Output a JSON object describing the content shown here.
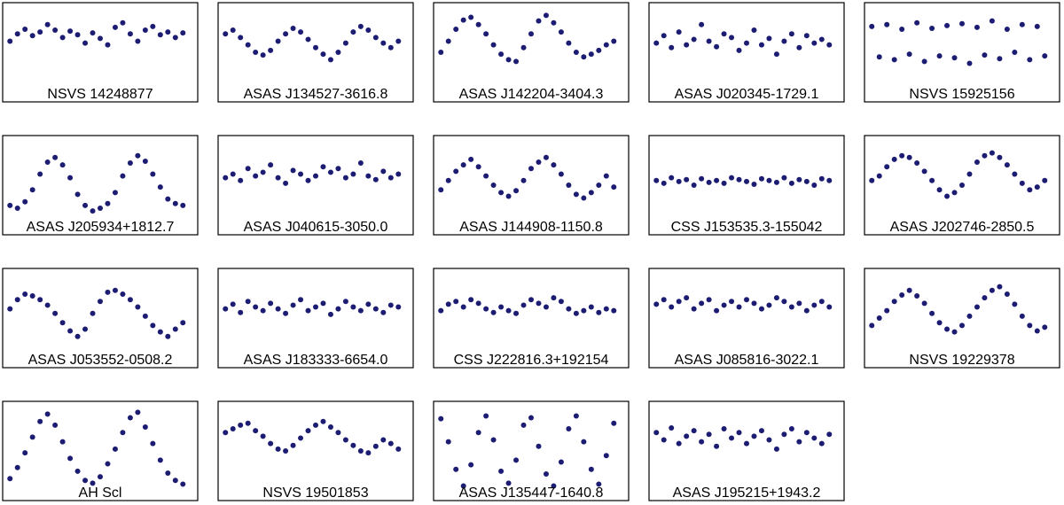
{
  "chart_data": [
    {
      "type": "scatter",
      "title": "NSVS 14248877",
      "color": "#1c1c73",
      "xlim": [
        0,
        1
      ],
      "ylim": [
        0,
        1
      ],
      "x": [
        0.02,
        0.06,
        0.1,
        0.14,
        0.18,
        0.22,
        0.26,
        0.3,
        0.34,
        0.38,
        0.42,
        0.46,
        0.5,
        0.54,
        0.58,
        0.62,
        0.66,
        0.7,
        0.74,
        0.78,
        0.82,
        0.86,
        0.9,
        0.94
      ],
      "y": [
        0.62,
        0.7,
        0.75,
        0.68,
        0.72,
        0.8,
        0.74,
        0.66,
        0.73,
        0.69,
        0.6,
        0.71,
        0.65,
        0.58,
        0.77,
        0.82,
        0.7,
        0.62,
        0.74,
        0.78,
        0.69,
        0.72,
        0.66,
        0.71
      ]
    },
    {
      "type": "scatter",
      "title": "ASAS J134527-3616.8",
      "color": "#1c1c73",
      "xlim": [
        0,
        1
      ],
      "ylim": [
        0,
        1
      ],
      "x": [
        0.02,
        0.06,
        0.1,
        0.14,
        0.18,
        0.22,
        0.26,
        0.3,
        0.34,
        0.38,
        0.42,
        0.46,
        0.5,
        0.54,
        0.58,
        0.62,
        0.66,
        0.7,
        0.74,
        0.78,
        0.82,
        0.86,
        0.9,
        0.94
      ],
      "y": [
        0.7,
        0.74,
        0.66,
        0.58,
        0.5,
        0.47,
        0.52,
        0.62,
        0.7,
        0.76,
        0.72,
        0.64,
        0.55,
        0.48,
        0.42,
        0.5,
        0.6,
        0.72,
        0.78,
        0.74,
        0.66,
        0.6,
        0.55,
        0.62
      ]
    },
    {
      "type": "scatter",
      "title": "ASAS J142204-3404.3",
      "color": "#1c1c73",
      "xlim": [
        0,
        1
      ],
      "ylim": [
        0,
        1
      ],
      "x": [
        0.02,
        0.06,
        0.1,
        0.14,
        0.18,
        0.22,
        0.26,
        0.3,
        0.34,
        0.38,
        0.42,
        0.46,
        0.5,
        0.54,
        0.58,
        0.62,
        0.66,
        0.7,
        0.74,
        0.78,
        0.82,
        0.86,
        0.9,
        0.94
      ],
      "y": [
        0.5,
        0.62,
        0.75,
        0.85,
        0.88,
        0.8,
        0.7,
        0.58,
        0.48,
        0.42,
        0.4,
        0.55,
        0.7,
        0.84,
        0.9,
        0.82,
        0.72,
        0.6,
        0.5,
        0.45,
        0.48,
        0.52,
        0.58,
        0.62
      ]
    },
    {
      "type": "scatter",
      "title": "ASAS J020345-1729.1",
      "color": "#1c1c73",
      "xlim": [
        0,
        1
      ],
      "ylim": [
        0,
        1
      ],
      "x": [
        0.02,
        0.06,
        0.1,
        0.14,
        0.18,
        0.22,
        0.26,
        0.3,
        0.34,
        0.38,
        0.42,
        0.46,
        0.5,
        0.54,
        0.58,
        0.62,
        0.66,
        0.7,
        0.74,
        0.78,
        0.82,
        0.86,
        0.9,
        0.94
      ],
      "y": [
        0.6,
        0.68,
        0.55,
        0.72,
        0.58,
        0.64,
        0.8,
        0.62,
        0.56,
        0.7,
        0.66,
        0.52,
        0.6,
        0.74,
        0.58,
        0.65,
        0.48,
        0.62,
        0.7,
        0.55,
        0.68,
        0.6,
        0.64,
        0.58
      ]
    },
    {
      "type": "scatter",
      "title": "NSVS 15925156",
      "color": "#1c1c73",
      "xlim": [
        0,
        1
      ],
      "ylim": [
        0,
        1
      ],
      "x": [
        0.02,
        0.06,
        0.1,
        0.14,
        0.18,
        0.22,
        0.26,
        0.3,
        0.34,
        0.38,
        0.42,
        0.46,
        0.5,
        0.54,
        0.58,
        0.62,
        0.66,
        0.7,
        0.74,
        0.78,
        0.82,
        0.86,
        0.9,
        0.94
      ],
      "y": [
        0.78,
        0.45,
        0.8,
        0.42,
        0.75,
        0.48,
        0.82,
        0.4,
        0.76,
        0.46,
        0.79,
        0.44,
        0.81,
        0.38,
        0.77,
        0.47,
        0.84,
        0.43,
        0.75,
        0.5,
        0.8,
        0.42,
        0.78,
        0.46
      ]
    },
    {
      "type": "scatter",
      "title": "ASAS J205934+1812.7",
      "color": "#1c1c73",
      "xlim": [
        0,
        1
      ],
      "ylim": [
        0,
        1
      ],
      "x": [
        0.02,
        0.06,
        0.1,
        0.14,
        0.18,
        0.22,
        0.26,
        0.3,
        0.34,
        0.38,
        0.42,
        0.46,
        0.5,
        0.54,
        0.58,
        0.62,
        0.66,
        0.7,
        0.74,
        0.78,
        0.82,
        0.86,
        0.9,
        0.94
      ],
      "y": [
        0.28,
        0.25,
        0.32,
        0.45,
        0.62,
        0.75,
        0.8,
        0.72,
        0.58,
        0.4,
        0.28,
        0.22,
        0.25,
        0.3,
        0.42,
        0.6,
        0.74,
        0.82,
        0.76,
        0.62,
        0.48,
        0.35,
        0.3,
        0.28
      ]
    },
    {
      "type": "scatter",
      "title": "ASAS J040615-3050.0",
      "color": "#1c1c73",
      "xlim": [
        0,
        1
      ],
      "ylim": [
        0,
        1
      ],
      "x": [
        0.02,
        0.06,
        0.1,
        0.14,
        0.18,
        0.22,
        0.26,
        0.3,
        0.34,
        0.38,
        0.42,
        0.46,
        0.5,
        0.54,
        0.58,
        0.62,
        0.66,
        0.7,
        0.74,
        0.78,
        0.82,
        0.86,
        0.9,
        0.94
      ],
      "y": [
        0.58,
        0.62,
        0.55,
        0.68,
        0.6,
        0.64,
        0.72,
        0.58,
        0.52,
        0.66,
        0.62,
        0.55,
        0.6,
        0.7,
        0.64,
        0.68,
        0.58,
        0.62,
        0.74,
        0.6,
        0.56,
        0.65,
        0.58,
        0.62
      ]
    },
    {
      "type": "scatter",
      "title": "ASAS J144908-1150.8",
      "color": "#1c1c73",
      "xlim": [
        0,
        1
      ],
      "ylim": [
        0,
        1
      ],
      "x": [
        0.02,
        0.06,
        0.1,
        0.14,
        0.18,
        0.22,
        0.26,
        0.3,
        0.34,
        0.38,
        0.42,
        0.46,
        0.5,
        0.54,
        0.58,
        0.62,
        0.66,
        0.7,
        0.74,
        0.78,
        0.82,
        0.86,
        0.9,
        0.94
      ],
      "y": [
        0.45,
        0.55,
        0.65,
        0.72,
        0.78,
        0.7,
        0.6,
        0.5,
        0.42,
        0.38,
        0.44,
        0.55,
        0.68,
        0.75,
        0.8,
        0.72,
        0.62,
        0.5,
        0.4,
        0.36,
        0.42,
        0.5,
        0.6,
        0.48
      ]
    },
    {
      "type": "scatter",
      "title": "CSS J153535.3-155042",
      "color": "#1c1c73",
      "xlim": [
        0,
        1
      ],
      "ylim": [
        0,
        1
      ],
      "x": [
        0.02,
        0.06,
        0.1,
        0.14,
        0.18,
        0.22,
        0.26,
        0.3,
        0.34,
        0.38,
        0.42,
        0.46,
        0.5,
        0.54,
        0.58,
        0.62,
        0.66,
        0.7,
        0.74,
        0.78,
        0.82,
        0.86,
        0.9,
        0.94
      ],
      "y": [
        0.55,
        0.52,
        0.58,
        0.54,
        0.56,
        0.5,
        0.57,
        0.53,
        0.55,
        0.52,
        0.58,
        0.56,
        0.54,
        0.51,
        0.57,
        0.55,
        0.53,
        0.58,
        0.52,
        0.56,
        0.54,
        0.5,
        0.57,
        0.55
      ]
    },
    {
      "type": "scatter",
      "title": "ASAS J202746-2850.5",
      "color": "#1c1c73",
      "xlim": [
        0,
        1
      ],
      "ylim": [
        0,
        1
      ],
      "x": [
        0.02,
        0.06,
        0.1,
        0.14,
        0.18,
        0.22,
        0.26,
        0.3,
        0.34,
        0.38,
        0.42,
        0.46,
        0.5,
        0.54,
        0.58,
        0.62,
        0.66,
        0.7,
        0.74,
        0.78,
        0.82,
        0.86,
        0.9,
        0.94
      ],
      "y": [
        0.55,
        0.6,
        0.7,
        0.78,
        0.82,
        0.8,
        0.74,
        0.65,
        0.55,
        0.45,
        0.38,
        0.42,
        0.5,
        0.62,
        0.75,
        0.82,
        0.85,
        0.8,
        0.72,
        0.62,
        0.52,
        0.45,
        0.48,
        0.55
      ]
    },
    {
      "type": "scatter",
      "title": "ASAS J053552-0508.2",
      "color": "#1c1c73",
      "xlim": [
        0,
        1
      ],
      "ylim": [
        0,
        1
      ],
      "x": [
        0.02,
        0.06,
        0.1,
        0.14,
        0.18,
        0.22,
        0.26,
        0.3,
        0.34,
        0.38,
        0.42,
        0.46,
        0.5,
        0.54,
        0.58,
        0.62,
        0.66,
        0.7,
        0.74,
        0.78,
        0.82,
        0.86,
        0.9,
        0.94
      ],
      "y": [
        0.6,
        0.7,
        0.76,
        0.74,
        0.7,
        0.64,
        0.55,
        0.45,
        0.36,
        0.3,
        0.38,
        0.55,
        0.68,
        0.78,
        0.8,
        0.76,
        0.7,
        0.62,
        0.52,
        0.42,
        0.35,
        0.3,
        0.38,
        0.45
      ]
    },
    {
      "type": "scatter",
      "title": "ASAS J183333-6654.0",
      "color": "#1c1c73",
      "xlim": [
        0,
        1
      ],
      "ylim": [
        0,
        1
      ],
      "x": [
        0.02,
        0.06,
        0.1,
        0.14,
        0.18,
        0.22,
        0.26,
        0.3,
        0.34,
        0.38,
        0.42,
        0.46,
        0.5,
        0.54,
        0.58,
        0.62,
        0.66,
        0.7,
        0.74,
        0.78,
        0.82,
        0.86,
        0.9,
        0.94
      ],
      "y": [
        0.6,
        0.65,
        0.56,
        0.68,
        0.62,
        0.58,
        0.66,
        0.6,
        0.55,
        0.64,
        0.7,
        0.58,
        0.62,
        0.66,
        0.54,
        0.6,
        0.68,
        0.62,
        0.58,
        0.65,
        0.6,
        0.56,
        0.64,
        0.62
      ]
    },
    {
      "type": "scatter",
      "title": "CSS J222816.3+192154",
      "color": "#1c1c73",
      "xlim": [
        0,
        1
      ],
      "ylim": [
        0,
        1
      ],
      "x": [
        0.02,
        0.06,
        0.1,
        0.14,
        0.18,
        0.22,
        0.26,
        0.3,
        0.34,
        0.38,
        0.42,
        0.46,
        0.5,
        0.54,
        0.58,
        0.62,
        0.66,
        0.7,
        0.74,
        0.78,
        0.82,
        0.86,
        0.9,
        0.94
      ],
      "y": [
        0.58,
        0.65,
        0.68,
        0.62,
        0.7,
        0.66,
        0.6,
        0.56,
        0.62,
        0.58,
        0.55,
        0.64,
        0.7,
        0.66,
        0.62,
        0.72,
        0.68,
        0.6,
        0.55,
        0.58,
        0.62,
        0.56,
        0.6,
        0.58
      ]
    },
    {
      "type": "scatter",
      "title": "ASAS J085816-3022.1",
      "color": "#1c1c73",
      "xlim": [
        0,
        1
      ],
      "ylim": [
        0,
        1
      ],
      "x": [
        0.02,
        0.06,
        0.1,
        0.14,
        0.18,
        0.22,
        0.26,
        0.3,
        0.34,
        0.38,
        0.42,
        0.46,
        0.5,
        0.54,
        0.58,
        0.62,
        0.66,
        0.7,
        0.74,
        0.78,
        0.82,
        0.86,
        0.9,
        0.94
      ],
      "y": [
        0.65,
        0.7,
        0.62,
        0.68,
        0.72,
        0.6,
        0.66,
        0.7,
        0.58,
        0.64,
        0.68,
        0.62,
        0.7,
        0.66,
        0.6,
        0.64,
        0.72,
        0.68,
        0.62,
        0.66,
        0.58,
        0.64,
        0.68,
        0.62
      ]
    },
    {
      "type": "scatter",
      "title": "NSVS 19229378",
      "color": "#1c1c73",
      "xlim": [
        0,
        1
      ],
      "ylim": [
        0,
        1
      ],
      "x": [
        0.02,
        0.06,
        0.1,
        0.14,
        0.18,
        0.22,
        0.26,
        0.3,
        0.34,
        0.38,
        0.42,
        0.46,
        0.5,
        0.54,
        0.58,
        0.62,
        0.66,
        0.7,
        0.74,
        0.78,
        0.82,
        0.86,
        0.9,
        0.94
      ],
      "y": [
        0.42,
        0.5,
        0.58,
        0.68,
        0.75,
        0.8,
        0.74,
        0.66,
        0.55,
        0.45,
        0.38,
        0.35,
        0.42,
        0.52,
        0.62,
        0.72,
        0.8,
        0.84,
        0.76,
        0.65,
        0.52,
        0.42,
        0.36,
        0.4
      ]
    },
    {
      "type": "scatter",
      "title": "AH Scl",
      "color": "#1c1c73",
      "xlim": [
        0,
        1
      ],
      "ylim": [
        0,
        1
      ],
      "x": [
        0.02,
        0.06,
        0.1,
        0.14,
        0.18,
        0.22,
        0.26,
        0.3,
        0.34,
        0.38,
        0.42,
        0.46,
        0.5,
        0.54,
        0.58,
        0.62,
        0.66,
        0.7,
        0.74,
        0.78,
        0.82,
        0.86,
        0.9,
        0.94
      ],
      "y": [
        0.2,
        0.32,
        0.48,
        0.65,
        0.82,
        0.9,
        0.78,
        0.6,
        0.42,
        0.28,
        0.18,
        0.15,
        0.22,
        0.36,
        0.52,
        0.7,
        0.86,
        0.92,
        0.76,
        0.58,
        0.4,
        0.26,
        0.18,
        0.14
      ]
    },
    {
      "type": "scatter",
      "title": "NSVS 19501853",
      "color": "#1c1c73",
      "xlim": [
        0,
        1
      ],
      "ylim": [
        0,
        1
      ],
      "x": [
        0.02,
        0.06,
        0.1,
        0.14,
        0.18,
        0.22,
        0.26,
        0.3,
        0.34,
        0.38,
        0.42,
        0.46,
        0.5,
        0.54,
        0.58,
        0.62,
        0.66,
        0.7,
        0.74,
        0.78,
        0.82,
        0.86,
        0.9,
        0.94
      ],
      "y": [
        0.7,
        0.74,
        0.78,
        0.8,
        0.72,
        0.66,
        0.58,
        0.52,
        0.5,
        0.56,
        0.64,
        0.72,
        0.78,
        0.82,
        0.76,
        0.7,
        0.62,
        0.56,
        0.5,
        0.48,
        0.55,
        0.62,
        0.58,
        0.52
      ]
    },
    {
      "type": "scatter",
      "title": "ASAS J135447-1640.8",
      "color": "#1c1c73",
      "xlim": [
        0,
        1
      ],
      "ylim": [
        0,
        1
      ],
      "x": [
        0.02,
        0.06,
        0.1,
        0.14,
        0.18,
        0.22,
        0.26,
        0.3,
        0.34,
        0.38,
        0.42,
        0.46,
        0.5,
        0.54,
        0.58,
        0.62,
        0.66,
        0.7,
        0.74,
        0.78,
        0.82,
        0.86,
        0.9,
        0.94
      ],
      "y": [
        0.85,
        0.6,
        0.3,
        0.12,
        0.35,
        0.7,
        0.88,
        0.62,
        0.28,
        0.15,
        0.4,
        0.78,
        0.86,
        0.55,
        0.25,
        0.12,
        0.38,
        0.74,
        0.88,
        0.6,
        0.3,
        0.14,
        0.45,
        0.8
      ]
    },
    {
      "type": "scatter",
      "title": "ASAS J195215+1943.2",
      "color": "#1c1c73",
      "xlim": [
        0,
        1
      ],
      "ylim": [
        0,
        1
      ],
      "x": [
        0.02,
        0.06,
        0.1,
        0.14,
        0.18,
        0.22,
        0.26,
        0.3,
        0.34,
        0.38,
        0.42,
        0.46,
        0.5,
        0.54,
        0.58,
        0.62,
        0.66,
        0.7,
        0.74,
        0.78,
        0.82,
        0.86,
        0.9,
        0.94
      ],
      "y": [
        0.7,
        0.62,
        0.75,
        0.58,
        0.66,
        0.72,
        0.6,
        0.68,
        0.55,
        0.74,
        0.64,
        0.7,
        0.58,
        0.66,
        0.72,
        0.62,
        0.52,
        0.68,
        0.74,
        0.6,
        0.7,
        0.64,
        0.58,
        0.68
      ]
    }
  ]
}
